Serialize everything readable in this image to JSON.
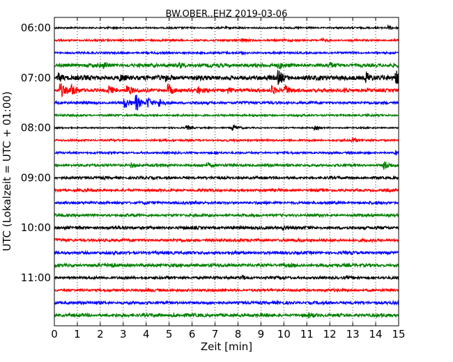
{
  "chart_data": {
    "type": "line",
    "title": "BW.OBER..EHZ 2019-03-06",
    "xlabel": "Zeit  [min]",
    "ylabel": "UTC (Lokalzeit = UTC + 01:00)",
    "xlim": [
      0,
      15
    ],
    "x_ticks": [
      "0",
      "1",
      "2",
      "3",
      "4",
      "5",
      "6",
      "7",
      "8",
      "9",
      "10",
      "11",
      "12",
      "13",
      "14",
      "15"
    ],
    "y_ticks": [
      "06:00",
      "07:00",
      "08:00",
      "09:00",
      "10:00",
      "11:00"
    ],
    "grid": "vertical-dotted",
    "trace_start_times": [
      "06:00",
      "06:15",
      "06:30",
      "06:45",
      "07:00",
      "07:15",
      "07:30",
      "07:45",
      "08:00",
      "08:15",
      "08:30",
      "08:45",
      "09:00",
      "09:15",
      "09:30",
      "09:45",
      "10:00",
      "10:15",
      "10:30",
      "10:45",
      "11:00",
      "11:15",
      "11:30",
      "11:45"
    ],
    "trace_colors": [
      "#000000",
      "#ff0000",
      "#0000ff",
      "#008000"
    ],
    "series": [
      {
        "start": "06:00",
        "color": "#000000",
        "noise": 0.25,
        "events": [
          {
            "x": 14.6,
            "amp": 0.5
          }
        ]
      },
      {
        "start": "06:15",
        "color": "#ff0000",
        "noise": 0.3,
        "events": [
          {
            "x": 8.2,
            "amp": 0.4
          },
          {
            "x": 11.7,
            "amp": 0.3
          }
        ]
      },
      {
        "start": "06:30",
        "color": "#0000ff",
        "noise": 0.3,
        "events": [
          {
            "x": 8.2,
            "amp": 0.3
          }
        ]
      },
      {
        "start": "06:45",
        "color": "#008000",
        "noise": 0.55,
        "events": [
          {
            "x": 2.2,
            "amp": 0.5
          },
          {
            "x": 5.5,
            "amp": 0.5
          },
          {
            "x": 9.8,
            "amp": 0.5
          },
          {
            "x": 12.0,
            "amp": 0.4
          }
        ]
      },
      {
        "start": "07:00",
        "color": "#000000",
        "noise": 0.7,
        "events": [
          {
            "x": 0.2,
            "amp": 1.0
          },
          {
            "x": 2.9,
            "amp": 0.6
          },
          {
            "x": 4.9,
            "amp": 0.7
          },
          {
            "x": 9.8,
            "amp": 1.4
          },
          {
            "x": 13.6,
            "amp": 1.4
          },
          {
            "x": 14.9,
            "amp": 1.5
          }
        ]
      },
      {
        "start": "07:15",
        "color": "#ff0000",
        "noise": 0.5,
        "events": [
          {
            "x": 0.3,
            "amp": 1.6
          },
          {
            "x": 0.8,
            "amp": 1.3
          },
          {
            "x": 2.4,
            "amp": 1.0
          },
          {
            "x": 3.2,
            "amp": 1.2
          },
          {
            "x": 5.0,
            "amp": 1.3
          },
          {
            "x": 6.3,
            "amp": 0.8
          },
          {
            "x": 7.6,
            "amp": 0.6
          },
          {
            "x": 9.5,
            "amp": 1.0
          },
          {
            "x": 10.1,
            "amp": 1.1
          },
          {
            "x": 12.7,
            "amp": 0.5
          }
        ]
      },
      {
        "start": "07:30",
        "color": "#0000ff",
        "noise": 0.4,
        "events": [
          {
            "x": 3.1,
            "amp": 1.1
          },
          {
            "x": 3.6,
            "amp": 1.8
          },
          {
            "x": 4.1,
            "amp": 1.2
          },
          {
            "x": 4.6,
            "amp": 0.9
          }
        ]
      },
      {
        "start": "07:45",
        "color": "#008000",
        "noise": 0.3,
        "events": []
      },
      {
        "start": "08:00",
        "color": "#000000",
        "noise": 0.2,
        "events": [
          {
            "x": 5.8,
            "amp": 0.5
          },
          {
            "x": 7.8,
            "amp": 0.8
          },
          {
            "x": 11.4,
            "amp": 0.4
          }
        ]
      },
      {
        "start": "08:15",
        "color": "#ff0000",
        "noise": 0.3,
        "events": [
          {
            "x": 13.0,
            "amp": 0.5
          }
        ]
      },
      {
        "start": "08:30",
        "color": "#0000ff",
        "noise": 0.3,
        "events": [
          {
            "x": 14.9,
            "amp": 0.4
          }
        ]
      },
      {
        "start": "08:45",
        "color": "#008000",
        "noise": 0.4,
        "events": [
          {
            "x": 3.4,
            "amp": 0.5
          },
          {
            "x": 6.7,
            "amp": 0.4
          },
          {
            "x": 14.4,
            "amp": 0.9
          }
        ]
      },
      {
        "start": "09:00",
        "color": "#000000",
        "noise": 0.4,
        "events": []
      },
      {
        "start": "09:15",
        "color": "#ff0000",
        "noise": 0.4,
        "events": []
      },
      {
        "start": "09:30",
        "color": "#0000ff",
        "noise": 0.4,
        "events": []
      },
      {
        "start": "09:45",
        "color": "#008000",
        "noise": 0.4,
        "events": []
      },
      {
        "start": "10:00",
        "color": "#000000",
        "noise": 0.45,
        "events": [
          {
            "x": 10.0,
            "amp": 0.5
          }
        ]
      },
      {
        "start": "10:15",
        "color": "#ff0000",
        "noise": 0.45,
        "events": []
      },
      {
        "start": "10:30",
        "color": "#0000ff",
        "noise": 0.45,
        "events": []
      },
      {
        "start": "10:45",
        "color": "#008000",
        "noise": 0.5,
        "events": [
          {
            "x": 2.4,
            "amp": 0.4
          }
        ]
      },
      {
        "start": "11:00",
        "color": "#000000",
        "noise": 0.4,
        "events": [
          {
            "x": 8.2,
            "amp": 0.4
          }
        ]
      },
      {
        "start": "11:15",
        "color": "#ff0000",
        "noise": 0.4,
        "events": []
      },
      {
        "start": "11:30",
        "color": "#0000ff",
        "noise": 0.45,
        "events": []
      },
      {
        "start": "11:45",
        "color": "#008000",
        "noise": 0.5,
        "events": [
          {
            "x": 5.2,
            "amp": 0.4
          },
          {
            "x": 11.1,
            "amp": 0.4
          }
        ]
      }
    ]
  }
}
